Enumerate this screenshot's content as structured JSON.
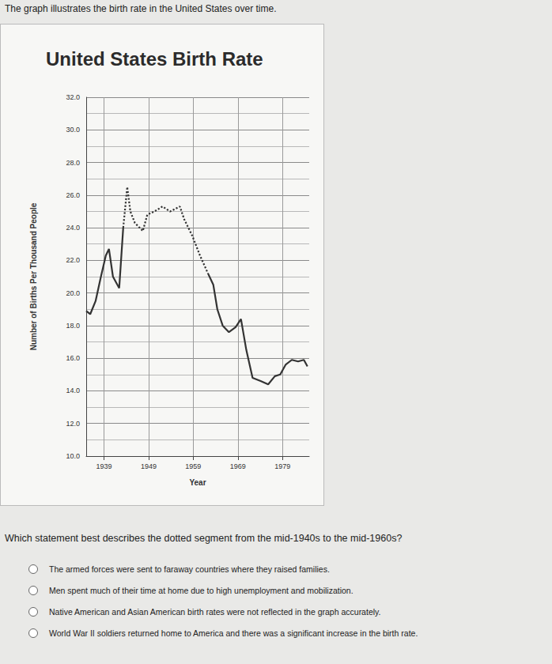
{
  "header": "The graph illustrates the birth rate in the United States over time.",
  "chart_data": {
    "type": "line",
    "title": "United States Birth Rate",
    "x_label": "Year",
    "y_label": "Number of Births Per Thousand People",
    "xlim": [
      1935,
      1985
    ],
    "xticks": [
      1939,
      1949,
      1959,
      1969,
      1979
    ],
    "ylim": [
      10,
      32
    ],
    "yticks": [
      {
        "value": 10,
        "label": "10.0"
      },
      {
        "value": 12,
        "label": "12.0"
      },
      {
        "value": 14,
        "label": "14.0"
      },
      {
        "value": 16,
        "label": "16.0"
      },
      {
        "value": 18,
        "label": "18.0"
      },
      {
        "value": 20,
        "label": "20.0"
      },
      {
        "value": 22,
        "label": "22.0"
      },
      {
        "value": 24,
        "label": "24.0"
      },
      {
        "value": 26,
        "label": "26.0"
      },
      {
        "value": 28,
        "label": "28.0"
      },
      {
        "value": 30,
        "label": "30.0"
      },
      {
        "value": 32,
        "label": "32.0"
      }
    ],
    "grid": true,
    "legend": false,
    "series": [
      {
        "color": "#333333",
        "line_style": "solid",
        "x": [
          1935.0,
          1935.9,
          1937.1,
          1938.3,
          1939.4,
          1940.1,
          1941.0,
          1942.4,
          1943.3
        ],
        "values": [
          18.9,
          18.7,
          19.5,
          21.0,
          22.3,
          22.7,
          21.0,
          20.3,
          24.0
        ]
      },
      {
        "color": "#333333",
        "line_style": "dotted",
        "x": [
          1943.3,
          1944.2,
          1944.9,
          1945.9,
          1947.7,
          1948.7,
          1950.3,
          1952.1,
          1953.8,
          1956.0,
          1957.0,
          1958.8,
          1960.5,
          1962.3
        ],
        "values": [
          24.0,
          26.5,
          25.0,
          24.3,
          23.8,
          24.8,
          25.0,
          25.3,
          25.0,
          25.3,
          24.5,
          23.5,
          22.3,
          21.2
        ]
      },
      {
        "color": "#333333",
        "line_style": "solid",
        "x": [
          1962.3,
          1963.5,
          1964.4,
          1965.6,
          1967.0,
          1968.5,
          1969.7,
          1970.9,
          1972.3,
          1974.1,
          1975.8,
          1977.3,
          1978.5,
          1979.7,
          1981.1,
          1982.5,
          1983.8,
          1984.6
        ],
        "values": [
          21.2,
          20.5,
          19.0,
          18.0,
          17.6,
          17.9,
          18.4,
          16.5,
          14.8,
          14.6,
          14.4,
          14.9,
          15.0,
          15.6,
          15.9,
          15.8,
          15.9,
          15.5
        ]
      }
    ]
  },
  "question": "Which statement best describes the dotted segment from the mid-1940s to the mid-1960s?",
  "options": [
    "The armed forces were sent to faraway countries where they raised families.",
    "Men spent much of their time at home due to high unemployment and mobilization.",
    "Native American and Asian American birth rates were not reflected in the graph accurately.",
    "World War II soldiers returned home to America and there was a significant increase in the birth rate."
  ]
}
